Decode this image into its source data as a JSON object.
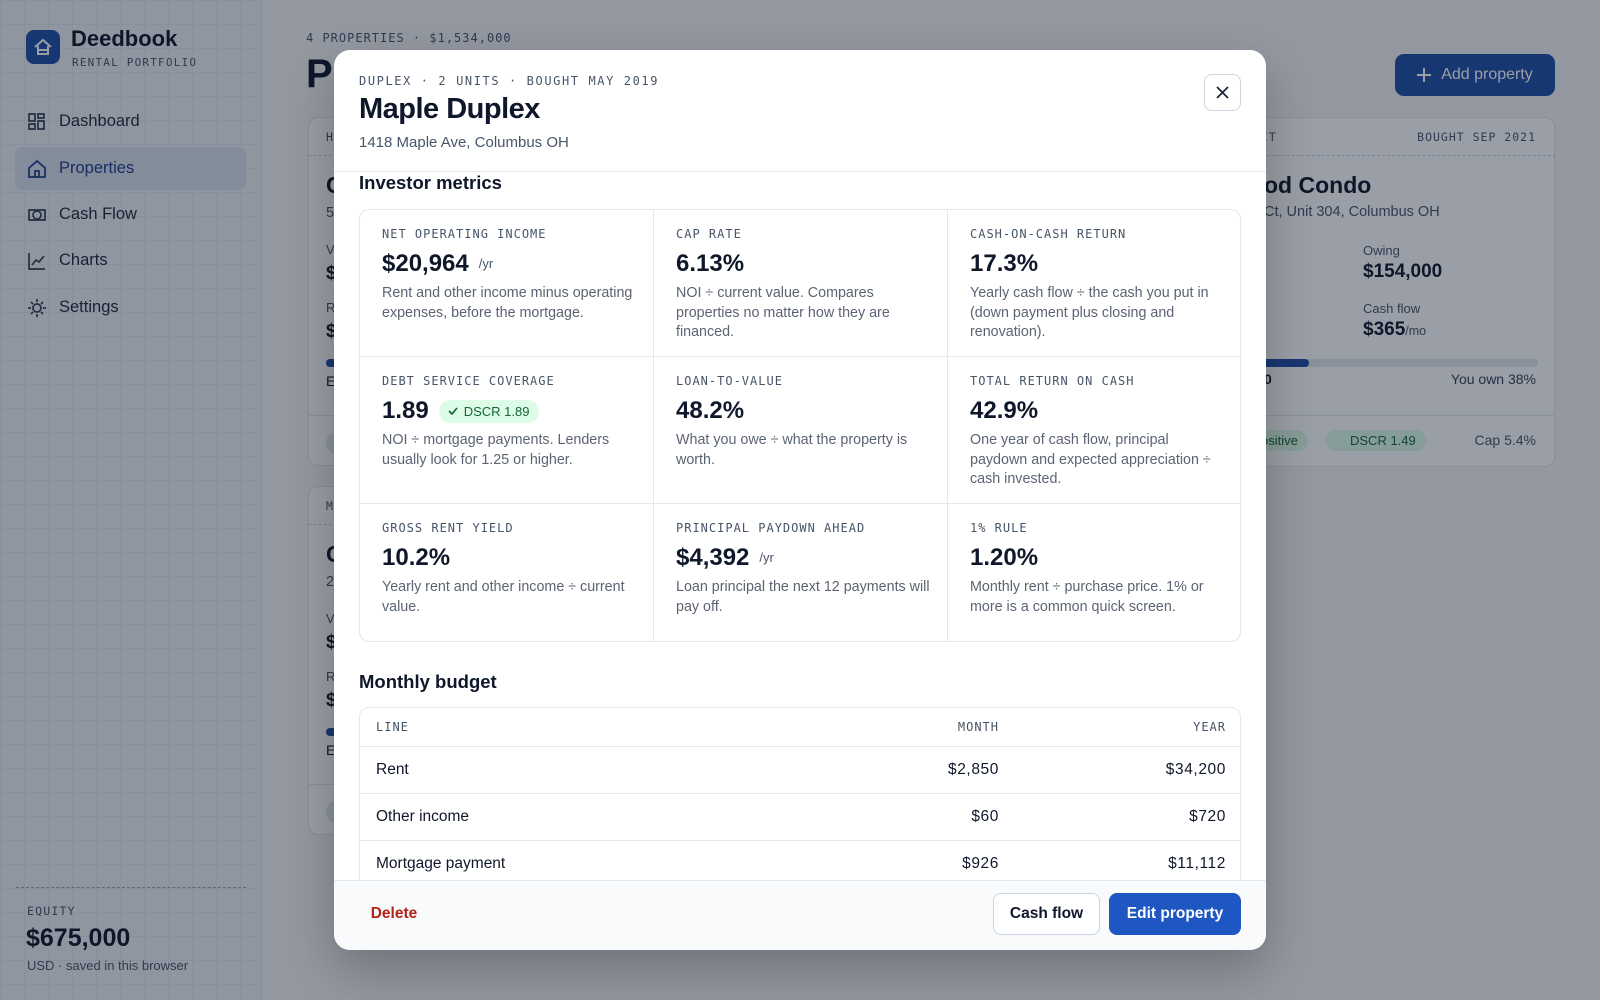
{
  "sidebar": {
    "brand": "Deedbook",
    "tagline": "RENTAL PORTFOLIO",
    "nav": [
      "Dashboard",
      "Properties",
      "Cash Flow",
      "Charts",
      "Settings"
    ],
    "equity_label": "EQUITY",
    "equity_value": "$675,000",
    "equity_note": "USD · saved in this browser"
  },
  "page": {
    "summary": "4 PROPERTIES · $1,534,000",
    "title_fragment": "P",
    "add_button": "Add property",
    "card_left_1": [
      "H",
      "C",
      "5",
      "V",
      "$",
      "R",
      "$",
      "E"
    ],
    "card_left_2": [
      "M",
      "C",
      "2",
      "V",
      "$",
      "R",
      "$",
      "E"
    ],
    "card_right": {
      "eyebrow_fragment": "IT",
      "bought": "BOUGHT SEP 2021",
      "title_fragment": "od Condo",
      "address_fragment": "Ct, Unit 304, Columbus OH",
      "owing_label": "Owing",
      "owing_value": "$154,000",
      "cashflow_label": "Cash flow",
      "cashflow_value": "$365",
      "cashflow_unit": "/mo",
      "progress_fragment": "0",
      "own": "You own 38%",
      "badge_fragment": "ositive",
      "dscr_badge": "DSCR 1.49",
      "cap": "Cap 5.4%"
    }
  },
  "modal": {
    "eyebrow": "DUPLEX · 2 UNITS · BOUGHT MAY 2019",
    "title": "Maple Duplex",
    "address": "1418 Maple Ave, Columbus OH",
    "metrics_heading": "Investor metrics",
    "metrics": [
      {
        "label": "NET OPERATING INCOME",
        "value": "$20,964",
        "unit": "/yr",
        "note": "Rent and other income minus operating expenses, before the mortgage."
      },
      {
        "label": "CAP RATE",
        "value": "6.13%",
        "note": "NOI ÷ current value. Compares properties no matter how they are financed."
      },
      {
        "label": "CASH-ON-CASH RETURN",
        "value": "17.3%",
        "note": "Yearly cash flow ÷ the cash you put in (down payment plus closing and renovation)."
      },
      {
        "label": "DEBT SERVICE COVERAGE",
        "value": "1.89",
        "badge": "DSCR 1.89",
        "note": "NOI ÷ mortgage payments. Lenders usually look for 1.25 or higher."
      },
      {
        "label": "LOAN-TO-VALUE",
        "value": "48.2%",
        "note": "What you owe ÷ what the property is worth."
      },
      {
        "label": "TOTAL RETURN ON CASH",
        "value": "42.9%",
        "note": "One year of cash flow, principal paydown and expected appreciation ÷ cash invested."
      },
      {
        "label": "GROSS RENT YIELD",
        "value": "10.2%",
        "note": "Yearly rent and other income ÷ current value."
      },
      {
        "label": "PRINCIPAL PAYDOWN AHEAD",
        "value": "$4,392",
        "unit": "/yr",
        "note": "Loan principal the next 12 payments will pay off."
      },
      {
        "label": "1% RULE",
        "value": "1.20%",
        "note": "Monthly rent ÷ purchase price. 1% or more is a common quick screen."
      }
    ],
    "budget_heading": "Monthly budget",
    "budget": {
      "columns": [
        "LINE",
        "MONTH",
        "YEAR"
      ],
      "rows": [
        [
          "Rent",
          "$2,850",
          "$34,200"
        ],
        [
          "Other income",
          "$60",
          "$720"
        ],
        [
          "Mortgage payment",
          "$926",
          "$11,112"
        ]
      ]
    },
    "footer": {
      "delete": "Delete",
      "cash_flow": "Cash flow",
      "edit": "Edit property"
    }
  }
}
